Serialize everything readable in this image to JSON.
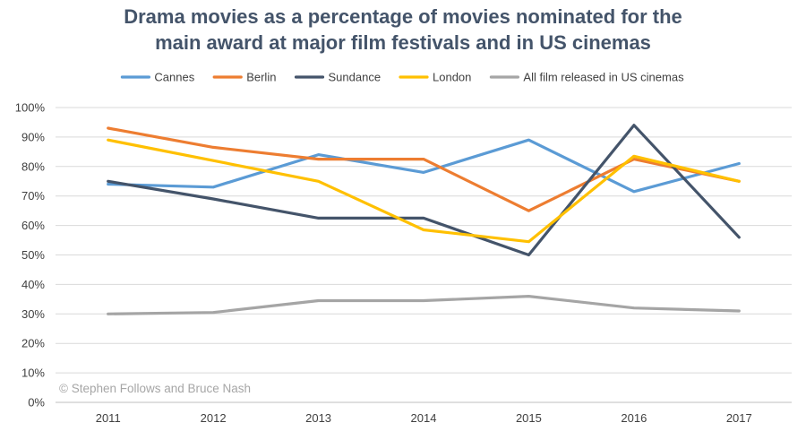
{
  "chart_data": {
    "type": "line",
    "title_lines": [
      "Drama movies as a percentage of movies nominated for the",
      "main award at major film festivals and in US cinemas"
    ],
    "categories": [
      "2011",
      "2012",
      "2013",
      "2014",
      "2015",
      "2016",
      "2017"
    ],
    "ylim": [
      0,
      100
    ],
    "yticks": [
      0,
      10,
      20,
      30,
      40,
      50,
      60,
      70,
      80,
      90,
      100
    ],
    "ytick_labels": [
      "0%",
      "10%",
      "20%",
      "30%",
      "40%",
      "50%",
      "60%",
      "70%",
      "80%",
      "90%",
      "100%"
    ],
    "grid": true,
    "legend_position": "top",
    "series": [
      {
        "name": "Cannes",
        "color": "#5b9bd5",
        "values": [
          74,
          73,
          84,
          78,
          89,
          71.5,
          81
        ]
      },
      {
        "name": "Berlin",
        "color": "#ed7d31",
        "values": [
          93,
          86.5,
          82.5,
          82.5,
          65,
          82.5,
          75
        ]
      },
      {
        "name": "Sundance",
        "color": "#44546a",
        "values": [
          75,
          69,
          62.5,
          62.5,
          50,
          94,
          56
        ]
      },
      {
        "name": "London",
        "color": "#ffc000",
        "values": [
          89,
          82,
          75,
          58.5,
          54.5,
          83.5,
          75
        ]
      },
      {
        "name": "All film released in US cinemas",
        "color": "#a5a5a5",
        "values": [
          30,
          30.5,
          34.5,
          34.5,
          36,
          32,
          31
        ]
      }
    ],
    "credit": "© Stephen Follows and Bruce Nash"
  }
}
